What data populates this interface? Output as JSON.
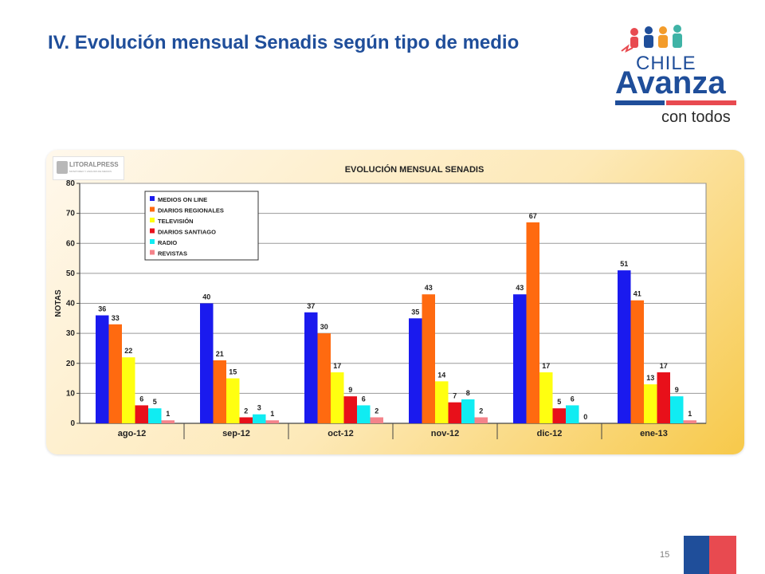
{
  "slide": {
    "title": "IV. Evolución mensual Senadis según tipo de medio",
    "page_number": "15"
  },
  "logo": {
    "line1": "CHILE",
    "line2": "Avanza",
    "line3": "con todos"
  },
  "brand": {
    "name": "LITORALPRESS",
    "tagline": "MONITOREO Y ANÁLISIS DE MEDIOS"
  },
  "colors": {
    "title": "#1f4e9a",
    "series": [
      "#1a1aee",
      "#ff6a10",
      "#ffff10",
      "#e8101a",
      "#10ecf2",
      "#f4838a"
    ]
  },
  "chart_data": {
    "type": "bar",
    "title": "EVOLUCIÓN MENSUAL SENADIS",
    "xlabel": "",
    "ylabel": "NOTAS",
    "ylim": [
      0,
      80
    ],
    "yticks": [
      0,
      10,
      20,
      30,
      40,
      50,
      60,
      70,
      80
    ],
    "grid": true,
    "legend_position": "top-left",
    "categories": [
      "ago-12",
      "sep-12",
      "oct-12",
      "nov-12",
      "dic-12",
      "ene-13"
    ],
    "series": [
      {
        "name": "MEDIOS ON LINE",
        "color": "#1a1aee",
        "values": [
          36,
          40,
          37,
          35,
          43,
          51
        ]
      },
      {
        "name": "DIARIOS REGIONALES",
        "color": "#ff6a10",
        "values": [
          33,
          21,
          30,
          43,
          67,
          41
        ]
      },
      {
        "name": "TELEVISIÓN",
        "color": "#ffff10",
        "values": [
          22,
          15,
          17,
          14,
          17,
          13
        ]
      },
      {
        "name": "DIARIOS SANTIAGO",
        "color": "#e8101a",
        "values": [
          6,
          2,
          9,
          7,
          5,
          17
        ]
      },
      {
        "name": "RADIO",
        "color": "#10ecf2",
        "values": [
          5,
          3,
          6,
          8,
          6,
          9
        ]
      },
      {
        "name": "REVISTAS",
        "color": "#f4838a",
        "values": [
          1,
          1,
          2,
          2,
          0,
          1
        ]
      }
    ]
  }
}
